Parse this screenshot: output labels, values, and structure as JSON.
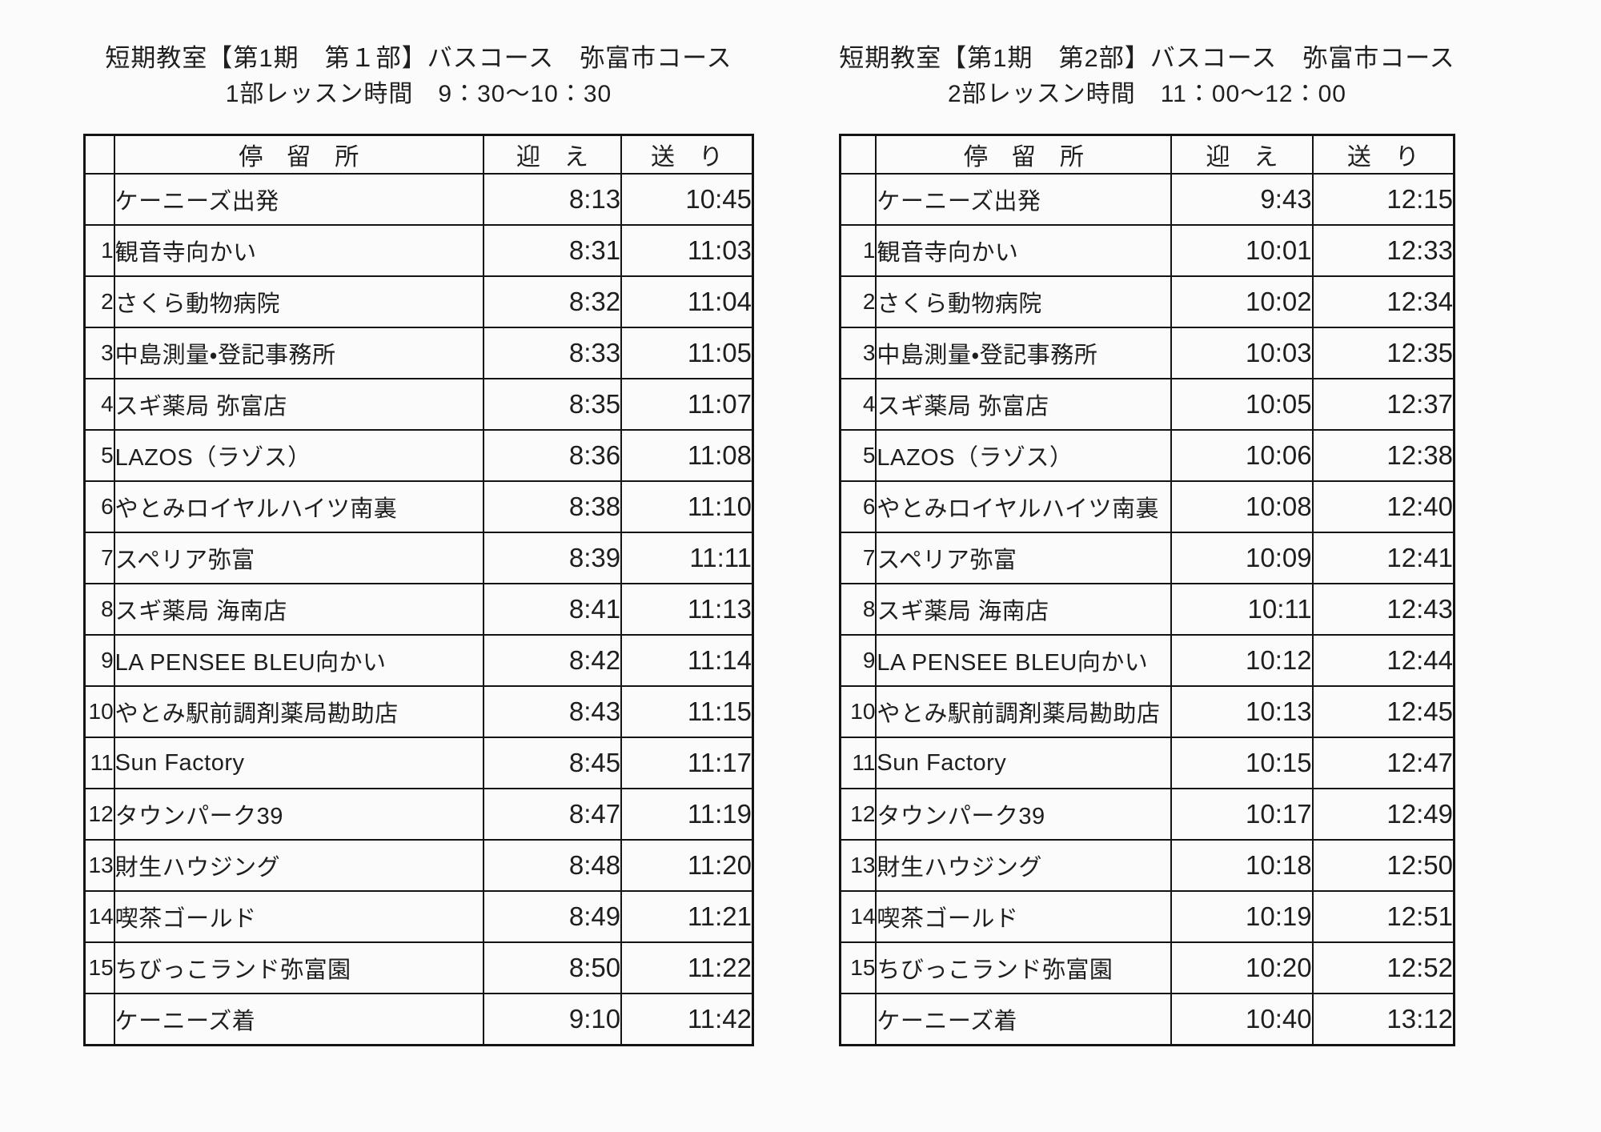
{
  "tables": [
    {
      "title": "短期教室【第1期　第１部】バスコース　弥富市コース",
      "subtitle": "1部レッスン時間　9：30～10：30",
      "headers": {
        "no": "",
        "stop": "停　留　所",
        "pickup": "迎　え",
        "dropoff": "送　り"
      },
      "rows": [
        {
          "no": "",
          "stop": "ケーニーズ出発",
          "pickup": "8:13",
          "dropoff": "10:45"
        },
        {
          "no": "1",
          "stop": "観音寺向かい",
          "pickup": "8:31",
          "dropoff": "11:03"
        },
        {
          "no": "2",
          "stop": "さくら動物病院",
          "pickup": "8:32",
          "dropoff": "11:04"
        },
        {
          "no": "3",
          "stop": "中島測量・登記事務所",
          "pickup": "8:33",
          "dropoff": "11:05"
        },
        {
          "no": "4",
          "stop": "スギ薬局 弥富店",
          "pickup": "8:35",
          "dropoff": "11:07"
        },
        {
          "no": "5",
          "stop": "LAZOS（ラゾス）",
          "pickup": "8:36",
          "dropoff": "11:08"
        },
        {
          "no": "6",
          "stop": "やとみロイヤルハイツ南裏",
          "pickup": "8:38",
          "dropoff": "11:10"
        },
        {
          "no": "7",
          "stop": "スペリア弥富",
          "pickup": "8:39",
          "dropoff": "11:11"
        },
        {
          "no": "8",
          "stop": "スギ薬局 海南店",
          "pickup": "8:41",
          "dropoff": "11:13"
        },
        {
          "no": "9",
          "stop": "LA PENSEE BLEU向かい",
          "pickup": "8:42",
          "dropoff": "11:14"
        },
        {
          "no": "10",
          "stop": "やとみ駅前調剤薬局勘助店",
          "pickup": "8:43",
          "dropoff": "11:15"
        },
        {
          "no": "11",
          "stop": "Sun Factory",
          "pickup": "8:45",
          "dropoff": "11:17"
        },
        {
          "no": "12",
          "stop": "タウンパーク39",
          "pickup": "8:47",
          "dropoff": "11:19"
        },
        {
          "no": "13",
          "stop": "財生ハウジング",
          "pickup": "8:48",
          "dropoff": "11:20"
        },
        {
          "no": "14",
          "stop": "喫茶ゴールド",
          "pickup": "8:49",
          "dropoff": "11:21"
        },
        {
          "no": "15",
          "stop": "ちびっこランド弥富園",
          "pickup": "8:50",
          "dropoff": "11:22"
        },
        {
          "no": "",
          "stop": "ケーニーズ着",
          "pickup": "9:10",
          "dropoff": "11:42"
        }
      ]
    },
    {
      "title": "短期教室【第1期　第2部】バスコース　弥富市コース",
      "subtitle": "2部レッスン時間　11：00～12：00",
      "headers": {
        "no": "",
        "stop": "停　留　所",
        "pickup": "迎　え",
        "dropoff": "送　り"
      },
      "rows": [
        {
          "no": "",
          "stop": "ケーニーズ出発",
          "pickup": "9:43",
          "dropoff": "12:15"
        },
        {
          "no": "1",
          "stop": "観音寺向かい",
          "pickup": "10:01",
          "dropoff": "12:33"
        },
        {
          "no": "2",
          "stop": "さくら動物病院",
          "pickup": "10:02",
          "dropoff": "12:34"
        },
        {
          "no": "3",
          "stop": "中島測量・登記事務所",
          "pickup": "10:03",
          "dropoff": "12:35"
        },
        {
          "no": "4",
          "stop": "スギ薬局 弥富店",
          "pickup": "10:05",
          "dropoff": "12:37"
        },
        {
          "no": "5",
          "stop": "LAZOS（ラゾス）",
          "pickup": "10:06",
          "dropoff": "12:38"
        },
        {
          "no": "6",
          "stop": "やとみロイヤルハイツ南裏",
          "pickup": "10:08",
          "dropoff": "12:40"
        },
        {
          "no": "7",
          "stop": "スペリア弥富",
          "pickup": "10:09",
          "dropoff": "12:41"
        },
        {
          "no": "8",
          "stop": "スギ薬局 海南店",
          "pickup": "10:11",
          "dropoff": "12:43"
        },
        {
          "no": "9",
          "stop": "LA PENSEE BLEU向かい",
          "pickup": "10:12",
          "dropoff": "12:44"
        },
        {
          "no": "10",
          "stop": "やとみ駅前調剤薬局勘助店",
          "pickup": "10:13",
          "dropoff": "12:45"
        },
        {
          "no": "11",
          "stop": "Sun Factory",
          "pickup": "10:15",
          "dropoff": "12:47"
        },
        {
          "no": "12",
          "stop": "タウンパーク39",
          "pickup": "10:17",
          "dropoff": "12:49"
        },
        {
          "no": "13",
          "stop": "財生ハウジング",
          "pickup": "10:18",
          "dropoff": "12:50"
        },
        {
          "no": "14",
          "stop": "喫茶ゴールド",
          "pickup": "10:19",
          "dropoff": "12:51"
        },
        {
          "no": "15",
          "stop": "ちびっこランド弥富園",
          "pickup": "10:20",
          "dropoff": "12:52"
        },
        {
          "no": "",
          "stop": "ケーニーズ着",
          "pickup": "10:40",
          "dropoff": "13:12"
        }
      ]
    }
  ]
}
